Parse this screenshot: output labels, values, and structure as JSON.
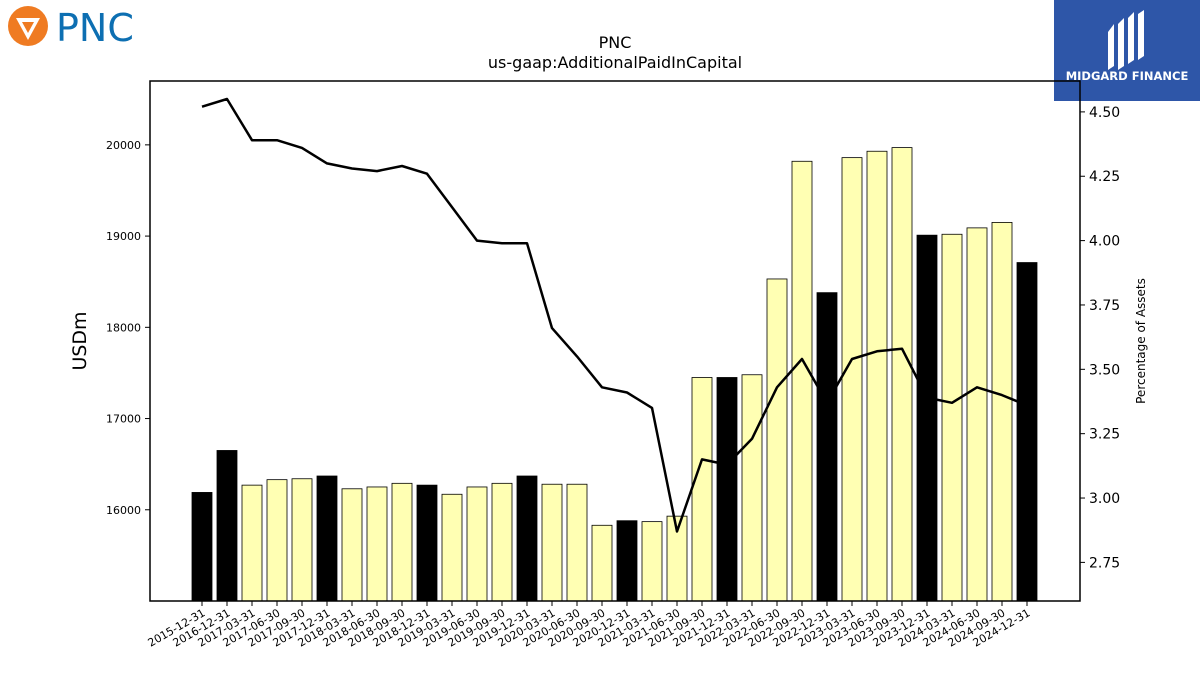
{
  "branding": {
    "left_logo_text": "PNC",
    "right_logo_text": "MIDGARD FINANCE",
    "left_logo_colors": {
      "orange": "#ef7b22",
      "blue": "#0d6fb2"
    },
    "right_logo_color": "#2e56a8"
  },
  "chart_data": {
    "type": "bar",
    "title": "PNC",
    "subtitle": "us-gaap:AdditionalPaidInCapital",
    "ylabel": "USDm",
    "y2label": "Percentage of Assets",
    "ylim": [
      15000,
      20700
    ],
    "y2lim": [
      2.6,
      4.62
    ],
    "yticks": [
      "16000",
      "17000",
      "18000",
      "19000",
      "20000"
    ],
    "y2ticks": [
      "2.75",
      "3.00",
      "3.25",
      "3.50",
      "3.75",
      "4.00",
      "4.25",
      "4.50"
    ],
    "bar_colors": {
      "year_end": "#000000",
      "quarter": "#ffffb3",
      "edge": "#000000"
    },
    "line_color": "#000000",
    "grid": false,
    "categories": [
      "2015-12-31",
      "2016-12-31",
      "2017-03-31",
      "2017-06-30",
      "2017-09-30",
      "2017-12-31",
      "2018-03-31",
      "2018-06-30",
      "2018-09-30",
      "2018-12-31",
      "2019-03-31",
      "2019-06-30",
      "2019-09-30",
      "2019-12-31",
      "2020-03-31",
      "2020-06-30",
      "2020-09-30",
      "2020-12-31",
      "2021-03-31",
      "2021-06-30",
      "2021-09-30",
      "2021-12-31",
      "2022-03-31",
      "2022-06-30",
      "2022-09-30",
      "2022-12-31",
      "2023-03-31",
      "2023-06-30",
      "2023-09-30",
      "2023-12-31",
      "2024-03-31",
      "2024-06-30",
      "2024-09-30",
      "2024-12-31"
    ],
    "series": [
      {
        "values": [
          16190,
          16650,
          16270,
          16330,
          16340,
          16370,
          16230,
          16250,
          16290,
          16270,
          16170,
          16250,
          16290,
          16370,
          16280,
          16280,
          15830,
          15880,
          15870,
          15930,
          17450,
          17450,
          17480,
          18530,
          19820,
          18380,
          19860,
          19930,
          19970,
          19010,
          19020,
          19090,
          19150,
          18710
        ]
      },
      {
        "axis": "right",
        "values": [
          4.52,
          4.55,
          4.39,
          4.39,
          4.36,
          4.3,
          4.28,
          4.27,
          4.29,
          4.26,
          4.13,
          4.0,
          3.99,
          3.99,
          3.66,
          3.55,
          3.43,
          3.41,
          3.35,
          2.87,
          3.15,
          3.13,
          3.23,
          3.43,
          3.54,
          3.37,
          3.54,
          3.57,
          3.58,
          3.39,
          3.37,
          3.43,
          3.4,
          3.36
        ]
      }
    ],
    "year_end_flags": [
      true,
      true,
      false,
      false,
      false,
      true,
      false,
      false,
      false,
      true,
      false,
      false,
      false,
      true,
      false,
      false,
      false,
      true,
      false,
      false,
      false,
      true,
      false,
      false,
      false,
      true,
      false,
      false,
      false,
      true,
      false,
      false,
      false,
      true
    ]
  }
}
